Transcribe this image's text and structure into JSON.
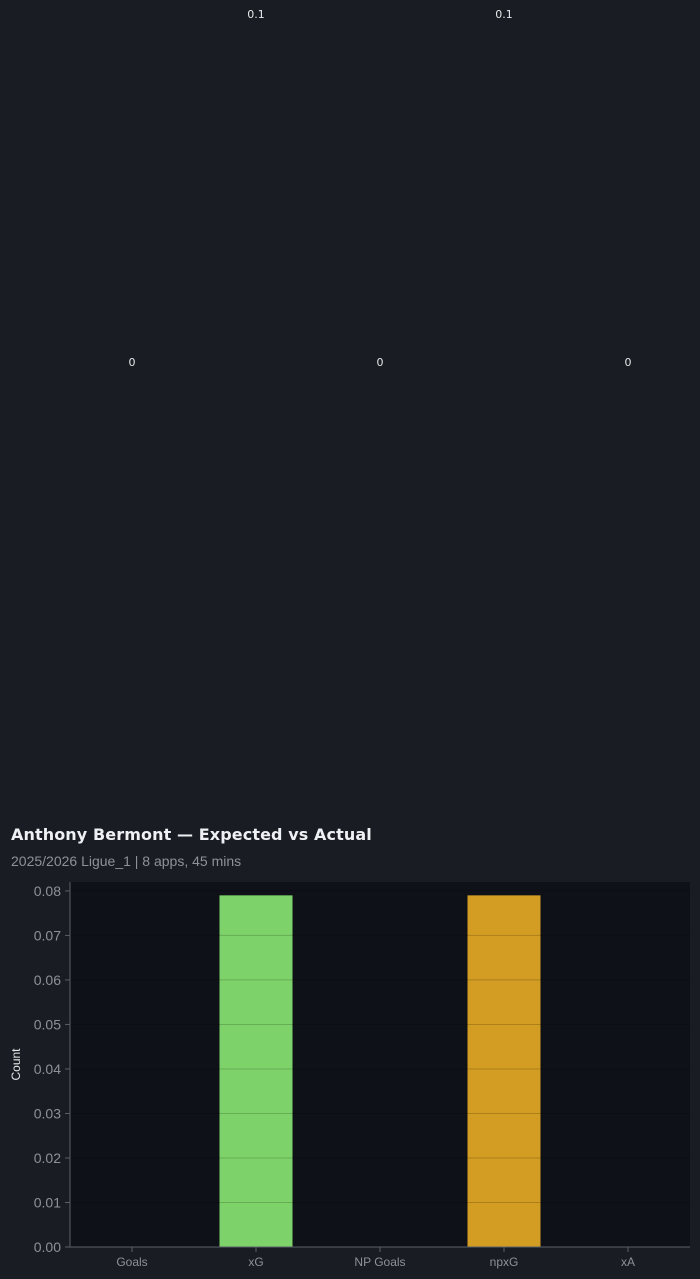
{
  "chart_data": {
    "type": "bar",
    "title": "Anthony Bermont — Expected vs Actual",
    "subtitle": "2025/2026 Ligue_1 | 8 apps, 45 mins",
    "xlabel": "",
    "ylabel": "Count",
    "categories": [
      "Goals",
      "xG",
      "NP Goals",
      "npxG",
      "xA"
    ],
    "values": [
      0,
      0.079,
      0,
      0.079,
      0
    ],
    "bar_labels": [
      "0",
      "0.1",
      "0",
      "0.1",
      "0"
    ],
    "bar_colors": [
      "#4fa3e0",
      "#7dd36a",
      "#e06666",
      "#d39c22",
      "#b57bd6"
    ],
    "ylim": [
      0,
      0.082
    ],
    "yticks": [
      "0.00",
      "0.01",
      "0.02",
      "0.03",
      "0.04",
      "0.05",
      "0.06",
      "0.07",
      "0.08"
    ],
    "grid": true,
    "legend": "none"
  },
  "colors": {
    "page_background": "#191c23",
    "plot_background": "#0e1118",
    "axis": "#5a5f68",
    "tick_text": "#8d929a",
    "label_text": "#e8e8ea"
  }
}
